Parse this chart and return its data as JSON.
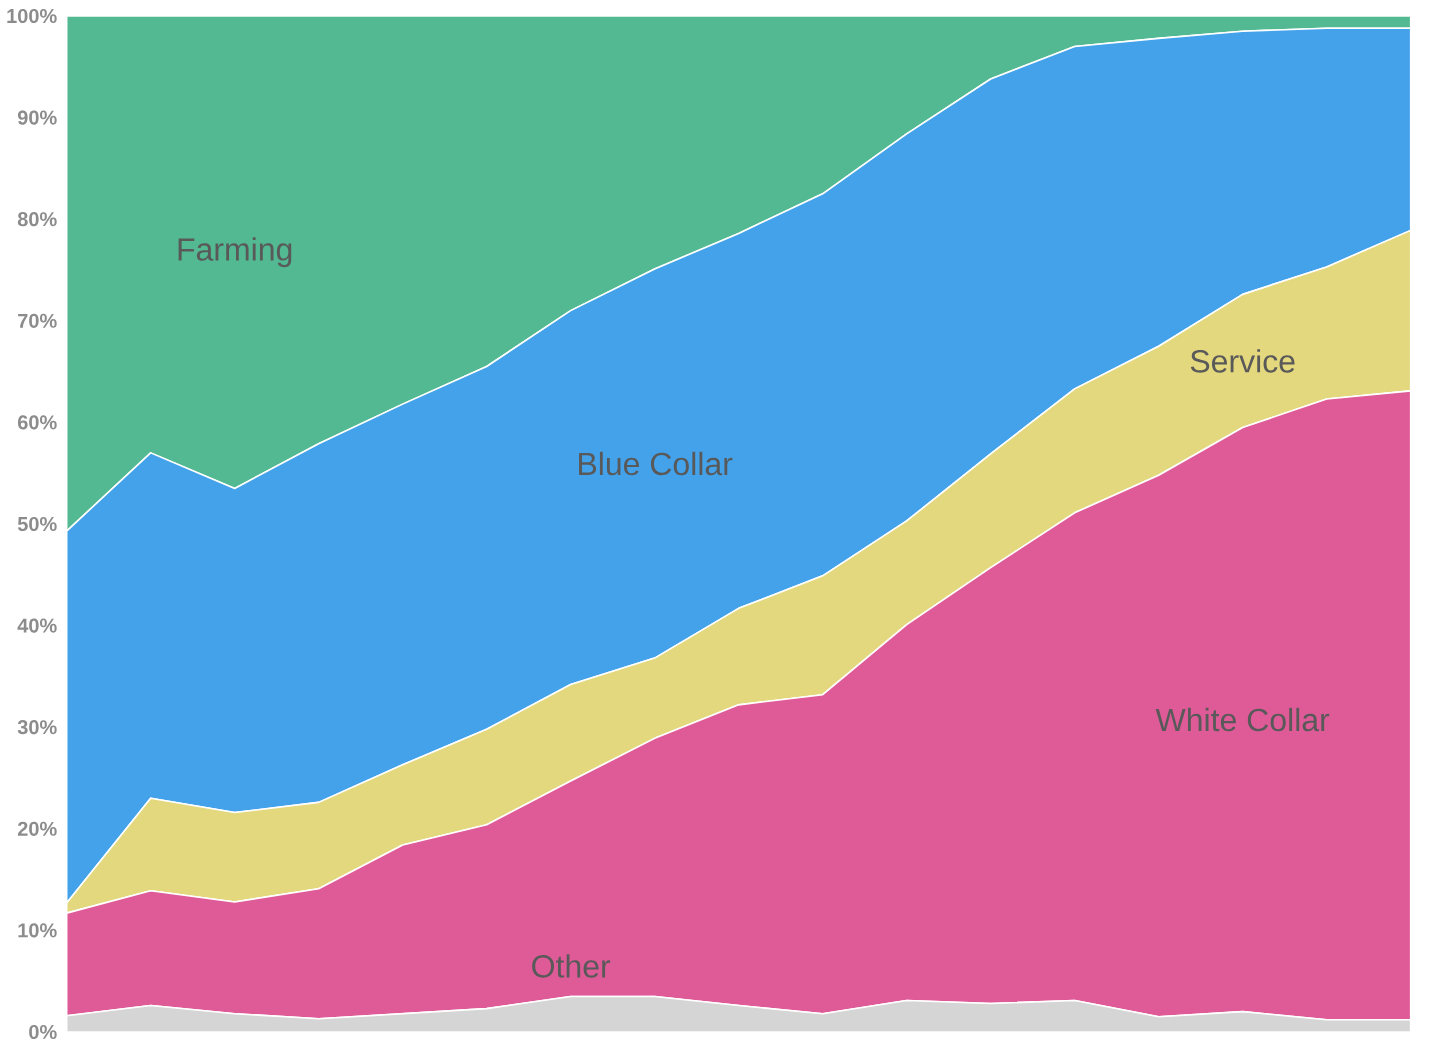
{
  "chart_data": {
    "type": "area",
    "stacked": true,
    "categories": [
      null,
      null,
      null,
      null,
      null,
      null,
      null,
      null,
      null,
      null,
      null,
      null,
      null,
      null,
      null,
      null,
      null
    ],
    "series": [
      {
        "name": "Other",
        "color": "#d5d5d5",
        "values": [
          1.6,
          2.6,
          1.8,
          1.3,
          1.8,
          2.3,
          3.5,
          3.5,
          2.6,
          1.8,
          3.1,
          2.8,
          3.1,
          1.5,
          2.0,
          1.2,
          1.2
        ]
      },
      {
        "name": "White Collar",
        "color": "#df5b98",
        "values": [
          10.1,
          11.3,
          11.0,
          12.8,
          16.6,
          18.1,
          21.2,
          25.4,
          29.6,
          31.4,
          37.0,
          42.9,
          48.0,
          53.3,
          57.5,
          61.1,
          61.9
        ]
      },
      {
        "name": "Service",
        "color": "#e3d87e",
        "values": [
          1.0,
          9.1,
          8.8,
          8.5,
          7.9,
          9.4,
          9.5,
          7.9,
          9.5,
          11.7,
          10.2,
          11.2,
          12.2,
          12.7,
          13.1,
          13.0,
          15.8
        ]
      },
      {
        "name": "Blue Collar",
        "color": "#43a2ea",
        "values": [
          36.6,
          34.0,
          31.9,
          35.3,
          35.5,
          35.7,
          36.8,
          38.3,
          36.9,
          37.6,
          38.1,
          36.9,
          33.7,
          30.3,
          25.9,
          23.5,
          19.9
        ]
      },
      {
        "name": "Farming",
        "color": "#52b992",
        "values": [
          50.7,
          43.0,
          46.5,
          42.1,
          38.2,
          34.5,
          29.0,
          24.9,
          21.4,
          17.5,
          11.6,
          6.2,
          3.0,
          2.2,
          1.5,
          1.2,
          1.2
        ]
      }
    ],
    "ylim": [
      0,
      100
    ],
    "yticks": [
      {
        "value": 0,
        "label": "0%"
      },
      {
        "value": 10,
        "label": "10%"
      },
      {
        "value": 20,
        "label": "20%"
      },
      {
        "value": 30,
        "label": "30%"
      },
      {
        "value": 40,
        "label": "40%"
      },
      {
        "value": 50,
        "label": "50%"
      },
      {
        "value": 60,
        "label": "60%"
      },
      {
        "value": 70,
        "label": "70%"
      },
      {
        "value": 80,
        "label": "80%"
      },
      {
        "value": 90,
        "label": "90%"
      },
      {
        "value": 100,
        "label": "100%"
      }
    ],
    "tick_labels": "y"
  }
}
